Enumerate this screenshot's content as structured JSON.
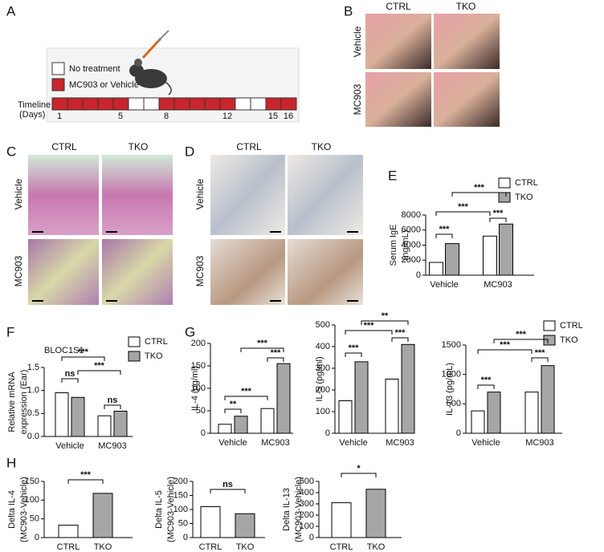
{
  "panel_labels": [
    "A",
    "B",
    "C",
    "D",
    "E",
    "F",
    "G",
    "H"
  ],
  "timeline": {
    "legend": [
      "No treatment",
      "MC903 or Vehicle"
    ],
    "label": "Timeline",
    "unit": "(Days)",
    "days": [
      "1",
      "5",
      "8",
      "12",
      "15",
      "16"
    ]
  },
  "panel_b": {
    "columns": [
      "CTRL",
      "TKO"
    ],
    "rows": [
      "Vehicle",
      "MC903"
    ]
  },
  "panel_c": {
    "columns": [
      "CTRL",
      "TKO"
    ],
    "rows": [
      "Vehicle",
      "MC903"
    ]
  },
  "panel_d": {
    "columns": [
      "CTRL",
      "TKO"
    ],
    "rows": [
      "Vehicle",
      "MC903"
    ]
  },
  "chart_data": [
    {
      "type": "bar",
      "ylabel": [
        "Serum IgE",
        "(ng/mL)"
      ],
      "categories": [
        "Vehicle",
        "MC903"
      ],
      "series": [
        {
          "name": "CTRL",
          "color": "#ffffff",
          "values": [
            1700,
            5200
          ]
        },
        {
          "name": "TKO",
          "color": "#a6a6a6",
          "values": [
            4200,
            6800
          ]
        }
      ],
      "ylim": [
        0,
        8000
      ],
      "yticks": [
        0,
        2000,
        4000,
        6000,
        8000
      ],
      "legend": true,
      "annotations": [
        "***",
        "***",
        "***",
        "***"
      ]
    },
    {
      "type": "bar",
      "title": "BLOC1S1",
      "ylabel": [
        "Relative mRNA",
        "expression (Ear)"
      ],
      "categories": [
        "Vehicle",
        "MC903"
      ],
      "series": [
        {
          "name": "CTRL",
          "color": "#ffffff",
          "values": [
            0.95,
            0.45
          ]
        },
        {
          "name": "TKO",
          "color": "#a6a6a6",
          "values": [
            0.85,
            0.55
          ]
        }
      ],
      "ylim": [
        0,
        1.5
      ],
      "yticks": [
        {
          "value": 0,
          "label": "0.0"
        },
        {
          "value": 0.5,
          "label": "0.5"
        },
        {
          "value": 1,
          "label": "1.0"
        },
        {
          "value": 1.5,
          "label": "1.5"
        }
      ],
      "legend": true,
      "annotations": [
        "***",
        "ns",
        "***",
        "ns"
      ]
    },
    {
      "type": "bar",
      "ylabel": [
        "IL-4 (pg/ml)"
      ],
      "categories": [
        "Vehicle",
        "MC903"
      ],
      "series": [
        {
          "color": "#ffffff",
          "values": [
            20,
            55
          ]
        },
        {
          "color": "#a6a6a6",
          "values": [
            38,
            155
          ]
        }
      ],
      "ylim": [
        0,
        200
      ],
      "yticks": [
        0,
        50,
        100,
        150,
        200
      ],
      "legend": false,
      "annotations": [
        "***",
        "***",
        "***",
        "**"
      ]
    },
    {
      "type": "bar",
      "ylabel": [
        "IL-5 (pg/ml)"
      ],
      "categories": [
        "Vehicle",
        "MC903"
      ],
      "series": [
        {
          "color": "#ffffff",
          "values": [
            150,
            250
          ]
        },
        {
          "color": "#a6a6a6",
          "values": [
            330,
            410
          ]
        }
      ],
      "ylim": [
        0,
        500
      ],
      "yticks": [
        0,
        100,
        200,
        300,
        400,
        500
      ],
      "legend": false,
      "annotations": [
        "**",
        "***",
        "***",
        "***"
      ]
    },
    {
      "type": "bar",
      "ylabel": [
        "IL-13 (pg/mL)"
      ],
      "categories": [
        "Vehicle",
        "MC903"
      ],
      "series": [
        {
          "name": "CTRL",
          "color": "#ffffff",
          "values": [
            380,
            700
          ]
        },
        {
          "name": "TKO",
          "color": "#a6a6a6",
          "values": [
            700,
            1150
          ]
        }
      ],
      "ylim": [
        0,
        1500
      ],
      "yticks": [
        0,
        500,
        1000,
        1500
      ],
      "legend": true,
      "annotations": [
        "***",
        "***",
        "***",
        "***"
      ]
    },
    {
      "type": "bar",
      "ylabel": [
        "Delta IL-4",
        "(MC903-Vehicle)"
      ],
      "categories": [
        "CTRL",
        "TKO"
      ],
      "values": [
        33,
        118
      ],
      "colors": [
        "#ffffff",
        "#a6a6a6"
      ],
      "ylim": [
        0,
        150
      ],
      "yticks": [
        0,
        50,
        100,
        150
      ],
      "annotations": [
        "***"
      ]
    },
    {
      "type": "bar",
      "ylabel": [
        "Delta IL-5",
        "(MC903-Vehicle)"
      ],
      "categories": [
        "CTRL",
        "TKO"
      ],
      "values": [
        110,
        85
      ],
      "colors": [
        "#ffffff",
        "#a6a6a6"
      ],
      "ylim": [
        0,
        200
      ],
      "yticks": [
        0,
        50,
        100,
        150,
        200
      ],
      "annotations": [
        "ns"
      ]
    },
    {
      "type": "bar",
      "ylabel": [
        "Delta IL-13",
        "(MC903-Vehicle)"
      ],
      "categories": [
        "CTRL",
        "TKO"
      ],
      "values": [
        310,
        430
      ],
      "colors": [
        "#ffffff",
        "#a6a6a6"
      ],
      "ylim": [
        0,
        500
      ],
      "yticks": [
        0,
        100,
        200,
        300,
        400,
        500
      ],
      "annotations": [
        "*"
      ]
    }
  ]
}
